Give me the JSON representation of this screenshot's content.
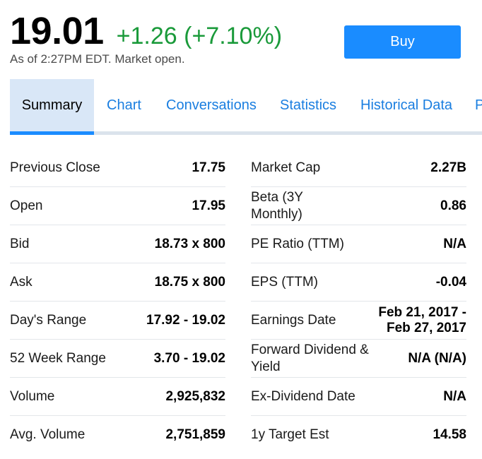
{
  "quote": {
    "price": "19.01",
    "change": "+1.26 (+7.10%)",
    "as_of": "As of 2:27PM EDT. Market open."
  },
  "buy_button": {
    "label": "Buy"
  },
  "tabs": [
    {
      "label": "Summary",
      "active": true
    },
    {
      "label": "Chart"
    },
    {
      "label": "Conversations"
    },
    {
      "label": "Statistics"
    },
    {
      "label": "Historical Data"
    },
    {
      "label": "Profile"
    }
  ],
  "stats_left": [
    {
      "label": "Previous Close",
      "value": "17.75"
    },
    {
      "label": "Open",
      "value": "17.95"
    },
    {
      "label": "Bid",
      "value": "18.73 x 800"
    },
    {
      "label": "Ask",
      "value": "18.75 x 800"
    },
    {
      "label": "Day's Range",
      "value": "17.92 - 19.02"
    },
    {
      "label": "52 Week Range",
      "value": "3.70 - 19.02"
    },
    {
      "label": "Volume",
      "value": "2,925,832"
    },
    {
      "label": "Avg. Volume",
      "value": "2,751,859"
    }
  ],
  "stats_right": [
    {
      "label": "Market Cap",
      "value": "2.27B"
    },
    {
      "label": "Beta (3Y Monthly)",
      "value": "0.86"
    },
    {
      "label": "PE Ratio (TTM)",
      "value": "N/A"
    },
    {
      "label": "EPS (TTM)",
      "value": "-0.04"
    },
    {
      "label": "Earnings Date",
      "value": "Feb 21, 2017 - Feb 27, 2017"
    },
    {
      "label": "Forward Dividend & Yield",
      "value": "N/A (N/A)"
    },
    {
      "label": "Ex-Dividend Date",
      "value": "N/A"
    },
    {
      "label": "1y Target Est",
      "value": "14.58"
    }
  ],
  "colors": {
    "positive": "#1a9a3a",
    "accent": "#0f69ff",
    "button": "#1a8cff",
    "tab_link": "#1a7ee0",
    "active_tab_bg": "#d9e7f7"
  }
}
